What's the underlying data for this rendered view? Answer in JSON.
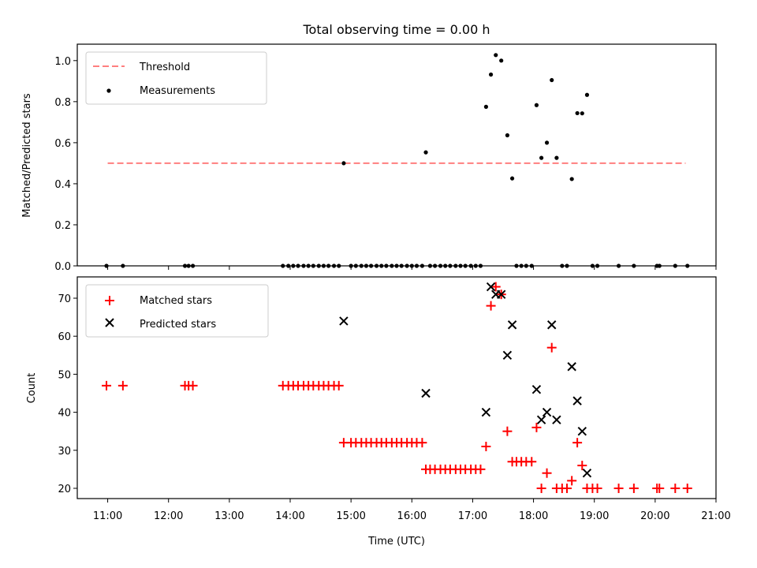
{
  "chart_data": [
    {
      "type": "scatter",
      "title": "Total observing time = 0.00 h",
      "xlabel": "",
      "ylabel": "Matched/Predicted stars",
      "xlim": [
        10.5,
        21.0
      ],
      "ylim": [
        0.0,
        1.08
      ],
      "yticks": [
        0.0,
        0.2,
        0.4,
        0.6,
        0.8,
        1.0
      ],
      "yticklabels": [
        "0.0",
        "0.2",
        "0.4",
        "0.6",
        "0.8",
        "1.0"
      ],
      "legend_position": "top-left",
      "threshold": {
        "name": "Threshold",
        "value": 0.5,
        "x_range": [
          11.0,
          20.5
        ],
        "color": "#ff7f7f"
      },
      "series": [
        {
          "name": "Measurements",
          "color": "#000000",
          "x": [
            10.98,
            11.25,
            12.27,
            12.33,
            12.4,
            13.88,
            13.97,
            14.05,
            14.13,
            14.22,
            14.3,
            14.38,
            14.47,
            14.55,
            14.63,
            14.72,
            14.8,
            14.88,
            15.0,
            15.08,
            15.17,
            15.25,
            15.33,
            15.42,
            15.5,
            15.58,
            15.67,
            15.75,
            15.83,
            15.92,
            16.0,
            16.08,
            16.17,
            16.23,
            16.3,
            16.38,
            16.47,
            16.55,
            16.63,
            16.72,
            16.8,
            16.88,
            16.97,
            17.05,
            17.13,
            17.22,
            17.3,
            17.38,
            17.47,
            17.57,
            17.65,
            17.72,
            17.8,
            17.88,
            17.97,
            18.05,
            18.13,
            18.22,
            18.3,
            18.38,
            18.47,
            18.55,
            18.63,
            18.72,
            18.8,
            18.88,
            18.97,
            19.05,
            19.4,
            19.65,
            20.03,
            20.07,
            20.33,
            20.53
          ],
          "y": [
            0.0,
            0.0,
            0.0,
            0.0,
            0.0,
            0.0,
            0.0,
            0.0,
            0.0,
            0.0,
            0.0,
            0.0,
            0.0,
            0.0,
            0.0,
            0.0,
            0.0,
            0.5,
            0.0,
            0.0,
            0.0,
            0.0,
            0.0,
            0.0,
            0.0,
            0.0,
            0.0,
            0.0,
            0.0,
            0.0,
            0.0,
            0.0,
            0.0,
            0.553,
            0.0,
            0.0,
            0.0,
            0.0,
            0.0,
            0.0,
            0.0,
            0.0,
            0.0,
            0.0,
            0.0,
            0.775,
            0.932,
            1.027,
            1.0,
            0.636,
            0.426,
            0.0,
            0.0,
            0.0,
            0.0,
            0.783,
            0.526,
            0.6,
            0.905,
            0.526,
            0.0,
            0.0,
            0.423,
            0.744,
            0.743,
            0.833,
            0.0,
            0.0,
            0.0,
            0.0,
            0.0,
            0.0,
            0.0,
            0.0
          ]
        }
      ]
    },
    {
      "type": "scatter",
      "title": "",
      "xlabel": "Time (UTC)",
      "ylabel": "Count",
      "xlim": [
        10.5,
        21.0
      ],
      "ylim": [
        17.3,
        75.6
      ],
      "xticks": [
        11,
        12,
        13,
        14,
        15,
        16,
        17,
        18,
        19,
        20,
        21
      ],
      "xticklabels": [
        "11:00",
        "12:00",
        "13:00",
        "14:00",
        "15:00",
        "16:00",
        "17:00",
        "18:00",
        "19:00",
        "20:00",
        "21:00"
      ],
      "yticks": [
        20,
        30,
        40,
        50,
        60,
        70
      ],
      "yticklabels": [
        "20",
        "30",
        "40",
        "50",
        "60",
        "70"
      ],
      "legend_position": "top-left",
      "series": [
        {
          "name": "Matched stars",
          "color": "#ff0000",
          "marker": "plus",
          "x": [
            10.98,
            11.25,
            12.27,
            12.33,
            12.4,
            13.88,
            13.97,
            14.05,
            14.13,
            14.22,
            14.3,
            14.38,
            14.47,
            14.55,
            14.63,
            14.72,
            14.8,
            14.88,
            15.0,
            15.08,
            15.17,
            15.25,
            15.33,
            15.42,
            15.5,
            15.58,
            15.67,
            15.75,
            15.83,
            15.92,
            16.0,
            16.08,
            16.17,
            16.23,
            16.3,
            16.38,
            16.47,
            16.55,
            16.63,
            16.72,
            16.8,
            16.88,
            16.97,
            17.05,
            17.13,
            17.22,
            17.3,
            17.38,
            17.47,
            17.57,
            17.65,
            17.72,
            17.8,
            17.88,
            17.97,
            18.05,
            18.13,
            18.22,
            18.3,
            18.38,
            18.47,
            18.55,
            18.63,
            18.72,
            18.8,
            18.88,
            18.97,
            19.05,
            19.4,
            19.65,
            20.03,
            20.07,
            20.33,
            20.53
          ],
          "y": [
            47,
            47,
            47,
            47,
            47,
            47,
            47,
            47,
            47,
            47,
            47,
            47,
            47,
            47,
            47,
            47,
            47,
            32,
            32,
            32,
            32,
            32,
            32,
            32,
            32,
            32,
            32,
            32,
            32,
            32,
            32,
            32,
            32,
            25,
            25,
            25,
            25,
            25,
            25,
            25,
            25,
            25,
            25,
            25,
            25,
            31,
            68,
            73,
            71,
            35,
            27,
            27,
            27,
            27,
            27,
            36,
            20,
            24,
            57,
            20,
            20,
            20,
            22,
            32,
            26,
            20,
            20,
            20,
            20,
            20,
            20,
            20,
            20,
            20
          ]
        },
        {
          "name": "Predicted stars",
          "color": "#000000",
          "marker": "x",
          "x": [
            14.88,
            16.23,
            17.22,
            17.3,
            17.38,
            17.47,
            17.57,
            17.65,
            18.05,
            18.13,
            18.22,
            18.3,
            18.38,
            18.63,
            18.72,
            18.8,
            18.88
          ],
          "y": [
            64,
            45,
            40,
            73,
            71,
            71,
            55,
            63,
            46,
            38,
            40,
            63,
            38,
            52,
            43,
            35,
            24
          ]
        }
      ]
    }
  ]
}
